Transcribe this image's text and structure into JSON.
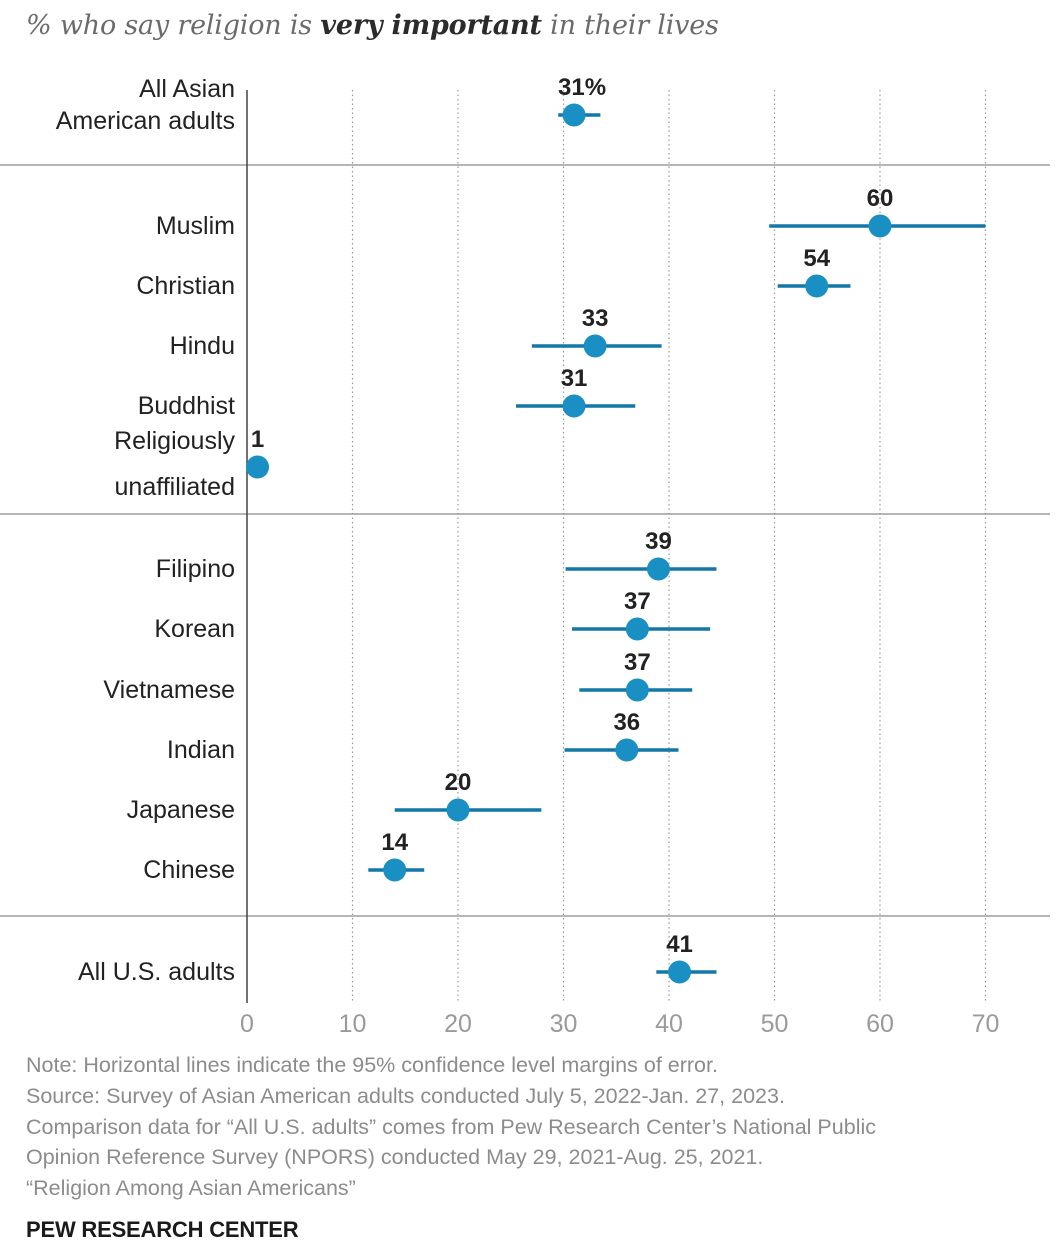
{
  "subtitle": {
    "before": "% who say religion is",
    "emphasis": "very important",
    "after": "in their lives"
  },
  "chart_data": {
    "type": "scatter",
    "title": "% who say religion is very important in their lives",
    "xlabel": "",
    "ylabel": "",
    "xlim": [
      0,
      70
    ],
    "xticks": [
      0,
      10,
      20,
      30,
      40,
      50,
      60,
      70
    ],
    "grid": true,
    "error_bars": true,
    "groups": [
      {
        "rows": [
          {
            "label": [
              "All Asian",
              "American adults"
            ],
            "value": 31,
            "value_label": "31%",
            "lo": 29.5,
            "hi": 33.5
          }
        ]
      },
      {
        "rows": [
          {
            "label": [
              "Muslim"
            ],
            "value": 60,
            "value_label": "60",
            "lo": 49.5,
            "hi": 70
          },
          {
            "label": [
              "Christian"
            ],
            "value": 54,
            "value_label": "54",
            "lo": 50.3,
            "hi": 57.2
          },
          {
            "label": [
              "Hindu"
            ],
            "value": 33,
            "value_label": "33",
            "lo": 27,
            "hi": 39.3
          },
          {
            "label": [
              "Buddhist"
            ],
            "value": 31,
            "value_label": "31",
            "lo": 25.5,
            "hi": 36.8
          },
          {
            "label": [
              "Religiously",
              "unaffiliated"
            ],
            "value": 1,
            "value_label": "1",
            "lo": 1,
            "hi": 1
          }
        ]
      },
      {
        "rows": [
          {
            "label": [
              "Filipino"
            ],
            "value": 39,
            "value_label": "39",
            "lo": 30.2,
            "hi": 44.5
          },
          {
            "label": [
              "Korean"
            ],
            "value": 37,
            "value_label": "37",
            "lo": 30.8,
            "hi": 43.9
          },
          {
            "label": [
              "Vietnamese"
            ],
            "value": 37,
            "value_label": "37",
            "lo": 31.5,
            "hi": 42.2
          },
          {
            "label": [
              "Indian"
            ],
            "value": 36,
            "value_label": "36",
            "lo": 30.1,
            "hi": 40.9
          },
          {
            "label": [
              "Japanese"
            ],
            "value": 20,
            "value_label": "20",
            "lo": 14,
            "hi": 27.9
          },
          {
            "label": [
              "Chinese"
            ],
            "value": 14,
            "value_label": "14",
            "lo": 11.5,
            "hi": 16.8
          }
        ]
      },
      {
        "rows": [
          {
            "label": [
              "All U.S. adults"
            ],
            "value": 41,
            "value_label": "41",
            "lo": 38.8,
            "hi": 44.5
          }
        ]
      }
    ],
    "colors": {
      "point": "#1a8fc3",
      "bar": "#1377a8"
    }
  },
  "notes": [
    "Note: Horizontal lines indicate the 95% confidence level margins of error.",
    "Source: Survey of Asian American adults conducted July 5, 2022-Jan. 27, 2023.",
    "Comparison data for “All U.S. adults” comes from Pew Research Center’s National Public",
    "Opinion Reference Survey (NPORS) conducted May 29, 2021-Aug. 25, 2021.",
    "“Religion Among Asian Americans”"
  ],
  "brand": "PEW RESEARCH CENTER"
}
